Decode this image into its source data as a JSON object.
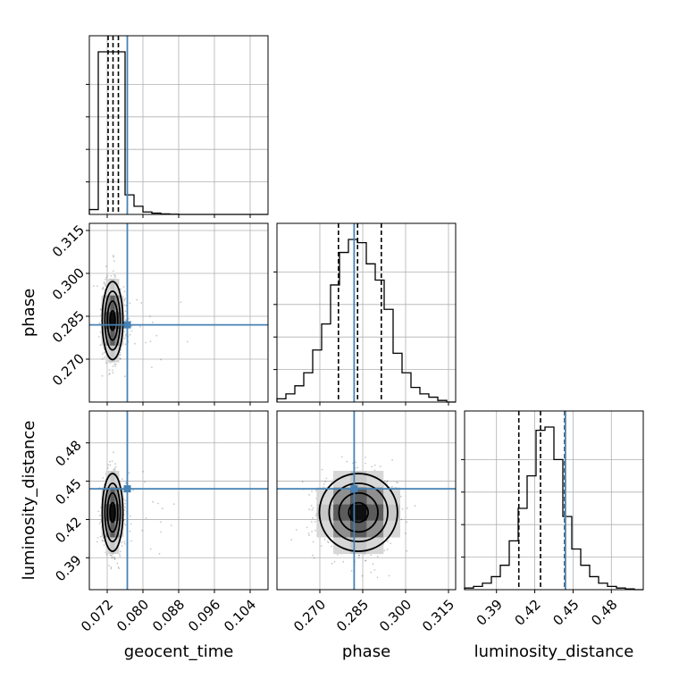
{
  "chart_data": {
    "type": "corner",
    "parameters": [
      "geocent_time",
      "phase",
      "luminosity_distance"
    ],
    "axis_labels": [
      "geocent_time",
      "phase",
      "luminosity_distance"
    ],
    "truths": [
      0.0765,
      0.282,
      0.444
    ],
    "ranges": [
      [
        0.068,
        0.108
      ],
      [
        0.255,
        0.3175
      ],
      [
        0.365,
        0.505
      ]
    ],
    "ticks": {
      "geocent_time": [
        "0.072",
        "0.080",
        "0.088",
        "0.096",
        "0.104"
      ],
      "phase": [
        "0.270",
        "0.285",
        "0.300",
        "0.315"
      ],
      "luminosity_distance": [
        "0.39",
        "0.42",
        "0.45",
        "0.48"
      ]
    },
    "quantiles": {
      "geocent_time": [
        0.0722,
        0.0733,
        0.0745
      ],
      "phase": [
        0.2765,
        0.2832,
        0.2915
      ],
      "luminosity_distance": [
        0.4075,
        0.4245,
        0.4435
      ]
    },
    "histograms": {
      "geocent_time": {
        "edges_start": 0.068,
        "bin_width": 0.002,
        "counts": [
          3,
          100,
          100,
          100,
          12,
          5,
          1.5,
          0.8,
          0.3,
          0.1,
          0,
          0,
          0,
          0,
          0,
          0,
          0,
          0,
          0,
          0
        ]
      },
      "phase": {
        "edges_start": 0.255,
        "bin_width": 0.003125,
        "counts": [
          2,
          5,
          10,
          18,
          32,
          48,
          72,
          92,
          100,
          98,
          85,
          75,
          57,
          30,
          18,
          9,
          5,
          3,
          1,
          0
        ]
      },
      "luminosity_distance": {
        "edges_start": 0.365,
        "bin_width": 0.007,
        "counts": [
          1,
          2,
          4,
          8,
          15,
          30,
          50,
          70,
          98,
          100,
          80,
          45,
          25,
          15,
          8,
          4,
          2,
          1,
          0.5,
          0
        ]
      }
    },
    "grid": true,
    "colors": {
      "truth": "#4682b4",
      "lines": "#000000",
      "grid": "#b0b0b0",
      "scatter": "#000000"
    }
  }
}
